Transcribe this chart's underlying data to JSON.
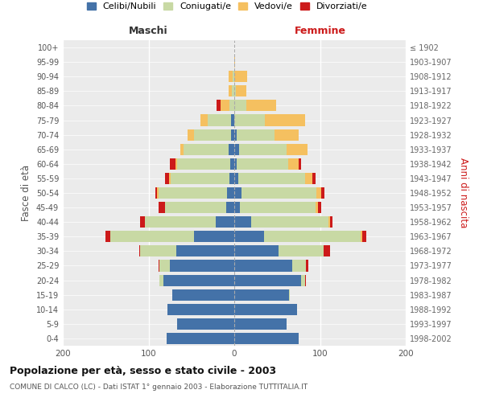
{
  "age_groups": [
    "0-4",
    "5-9",
    "10-14",
    "15-19",
    "20-24",
    "25-29",
    "30-34",
    "35-39",
    "40-44",
    "45-49",
    "50-54",
    "55-59",
    "60-64",
    "65-69",
    "70-74",
    "75-79",
    "80-84",
    "85-89",
    "90-94",
    "95-99",
    "100+"
  ],
  "birth_years": [
    "1998-2002",
    "1993-1997",
    "1988-1992",
    "1983-1987",
    "1978-1982",
    "1973-1977",
    "1968-1972",
    "1963-1967",
    "1958-1962",
    "1953-1957",
    "1948-1952",
    "1943-1947",
    "1938-1942",
    "1933-1937",
    "1928-1932",
    "1923-1927",
    "1918-1922",
    "1913-1917",
    "1908-1912",
    "1903-1907",
    "≤ 1902"
  ],
  "maschi": {
    "celibi": [
      79,
      67,
      78,
      72,
      83,
      75,
      68,
      47,
      22,
      9,
      8,
      6,
      5,
      7,
      4,
      4,
      0,
      0,
      0,
      0,
      0
    ],
    "coniugati": [
      0,
      0,
      0,
      0,
      4,
      12,
      42,
      98,
      82,
      72,
      80,
      68,
      62,
      52,
      43,
      27,
      6,
      3,
      2,
      0,
      0
    ],
    "vedovi": [
      0,
      0,
      0,
      0,
      0,
      0,
      0,
      0,
      0,
      0,
      2,
      2,
      2,
      4,
      7,
      8,
      10,
      4,
      5,
      0,
      0
    ],
    "divorziati": [
      0,
      0,
      0,
      0,
      0,
      1,
      1,
      5,
      6,
      7,
      2,
      5,
      6,
      0,
      0,
      0,
      5,
      0,
      0,
      0,
      0
    ]
  },
  "femmine": {
    "nubili": [
      75,
      61,
      73,
      64,
      78,
      68,
      52,
      35,
      20,
      7,
      8,
      5,
      3,
      6,
      3,
      0,
      0,
      0,
      0,
      0,
      0
    ],
    "coniugate": [
      0,
      0,
      0,
      1,
      5,
      16,
      52,
      112,
      90,
      88,
      88,
      78,
      60,
      55,
      44,
      36,
      14,
      2,
      0,
      0,
      0
    ],
    "vedove": [
      0,
      0,
      0,
      0,
      0,
      0,
      0,
      2,
      2,
      3,
      5,
      8,
      12,
      24,
      28,
      47,
      35,
      12,
      15,
      1,
      0
    ],
    "divorziate": [
      0,
      0,
      0,
      0,
      1,
      2,
      8,
      5,
      3,
      3,
      4,
      4,
      3,
      0,
      0,
      0,
      0,
      0,
      0,
      0,
      0
    ]
  },
  "colors": {
    "celibi": "#4472a8",
    "coniugati": "#c8d9a4",
    "vedovi": "#f5c060",
    "divorziati": "#cc1a1a"
  },
  "legend_labels": [
    "Celibi/Nubili",
    "Coniugati/e",
    "Vedovi/e",
    "Divorziati/e"
  ],
  "title": "Popolazione per età, sesso e stato civile - 2003",
  "subtitle": "COMUNE DI CALCO (LC) - Dati ISTAT 1° gennaio 2003 - Elaborazione TUTTITALIA.IT",
  "xlabel_left": "Maschi",
  "xlabel_right": "Femmine",
  "ylabel_left": "Fasce di età",
  "ylabel_right": "Anni di nascita",
  "xlim": 200,
  "bg_axes": "#ebebeb",
  "bg_fig": "#ffffff",
  "grid_color": "#ffffff",
  "dashed_line_color": "#aaaaaa"
}
